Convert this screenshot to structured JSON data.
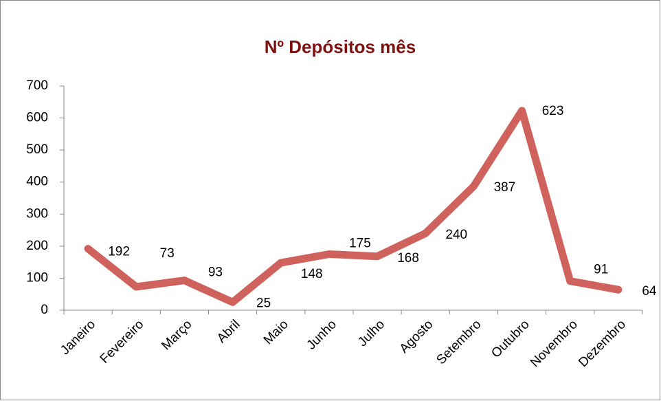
{
  "chart_data": {
    "type": "line",
    "title": "Nº Depósitos mês",
    "categories": [
      "Janeiro",
      "Fevereiro",
      "Março",
      "Abril",
      "Maio",
      "Junho",
      "Julho",
      "Agosto",
      "Setembro",
      "Outubro",
      "Novembro",
      "Dezembro"
    ],
    "values": [
      192,
      73,
      93,
      25,
      148,
      175,
      168,
      240,
      387,
      623,
      91,
      64
    ],
    "color": "#d0625d",
    "ylim": [
      0,
      700
    ],
    "yticks": [
      0,
      100,
      200,
      300,
      400,
      500,
      600,
      700
    ],
    "grid": false
  }
}
